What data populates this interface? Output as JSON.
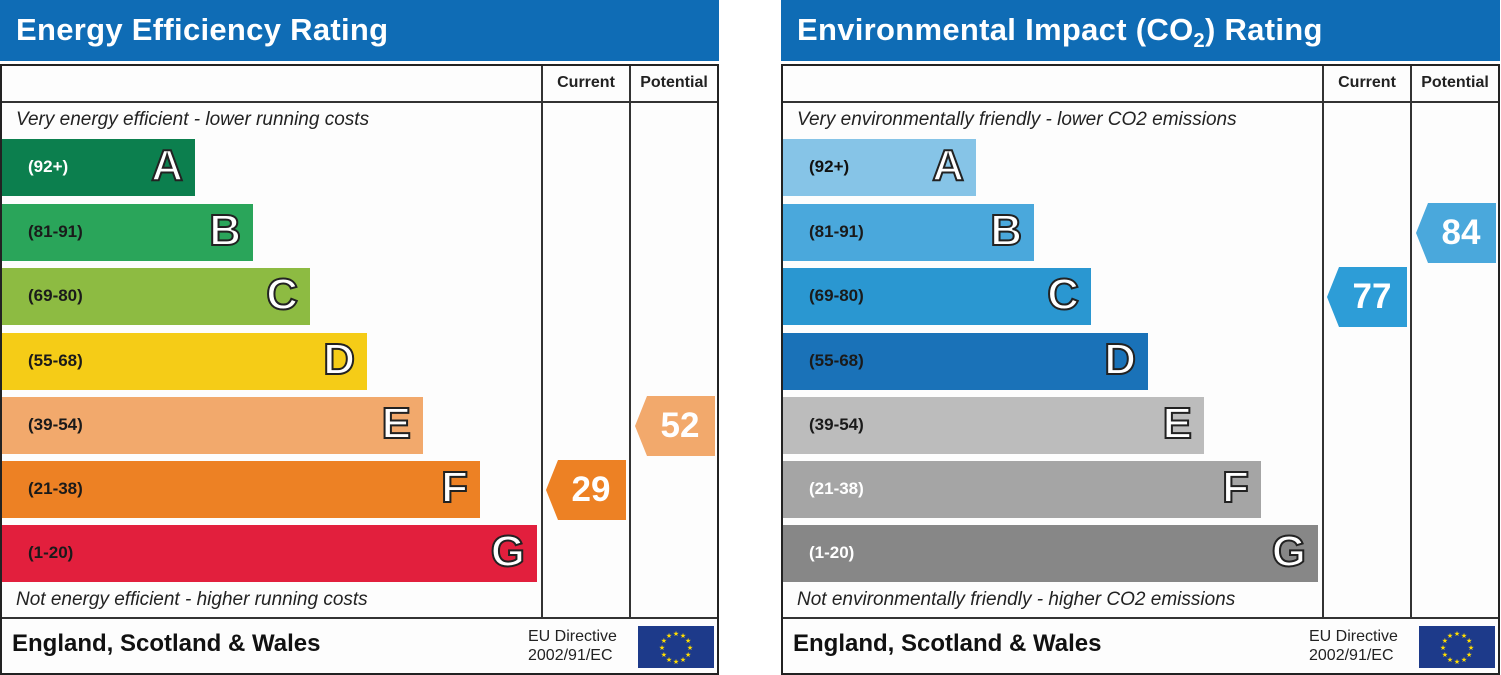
{
  "chart_data": [
    {
      "type": "bar",
      "title": "Energy Efficiency Rating",
      "column_headers": [
        "Current",
        "Potential"
      ],
      "top_note": "Very energy efficient - lower running costs",
      "bottom_note": "Not energy efficient - higher running costs",
      "bands": [
        {
          "letter": "A",
          "range": "(92+)",
          "color": "#0c7f4e",
          "text_color": "#ffffff"
        },
        {
          "letter": "B",
          "range": "(81-91)",
          "color": "#2aa55a",
          "text_color": "#1a1a1a"
        },
        {
          "letter": "C",
          "range": "(69-80)",
          "color": "#8dbb42",
          "text_color": "#1a1a1a"
        },
        {
          "letter": "D",
          "range": "(55-68)",
          "color": "#f5cc17",
          "text_color": "#1a1a1a"
        },
        {
          "letter": "E",
          "range": "(39-54)",
          "color": "#f2a96c",
          "text_color": "#1a1a1a"
        },
        {
          "letter": "F",
          "range": "(21-38)",
          "color": "#ed8124",
          "text_color": "#1a1a1a"
        },
        {
          "letter": "G",
          "range": "(1-20)",
          "color": "#e21f3d",
          "text_color": "#1a1a1a"
        }
      ],
      "current": {
        "value": "29",
        "band": 5,
        "color": "#ed8124"
      },
      "potential": {
        "value": "52",
        "band": 4,
        "color": "#f2a96c"
      },
      "footer_country": "England, Scotland & Wales",
      "footer_directive_1": "EU Directive",
      "footer_directive_2": "2002/91/EC"
    },
    {
      "type": "bar",
      "title": "Environmental Impact (CO",
      "title_sub": "2",
      "title_end": ") Rating",
      "column_headers": [
        "Current",
        "Potential"
      ],
      "top_note": "Very environmentally friendly - lower CO2 emissions",
      "bottom_note": "Not environmentally friendly - higher CO2 emissions",
      "bands": [
        {
          "letter": "A",
          "range": "(92+)",
          "color": "#86c4e7",
          "text_color": "#111111"
        },
        {
          "letter": "B",
          "range": "(81-91)",
          "color": "#4aa8dc",
          "text_color": "#1a1a1a"
        },
        {
          "letter": "C",
          "range": "(69-80)",
          "color": "#2a97d1",
          "text_color": "#1a1a1a"
        },
        {
          "letter": "D",
          "range": "(55-68)",
          "color": "#1a72b8",
          "text_color": "#1a1a1a"
        },
        {
          "letter": "E",
          "range": "(39-54)",
          "color": "#bcbcbc",
          "text_color": "#1a1a1a"
        },
        {
          "letter": "F",
          "range": "(21-38)",
          "color": "#a5a5a5",
          "text_color": "#ffffff"
        },
        {
          "letter": "G",
          "range": "(1-20)",
          "color": "#878787",
          "text_color": "#ffffff"
        }
      ],
      "current": {
        "value": "77",
        "band": 2,
        "color": "#2d9dd7"
      },
      "potential": {
        "value": "84",
        "band": 1,
        "color": "#4aa8dc"
      },
      "footer_country": "England, Scotland & Wales",
      "footer_directive_1": "EU Directive",
      "footer_directive_2": "2002/91/EC"
    }
  ]
}
